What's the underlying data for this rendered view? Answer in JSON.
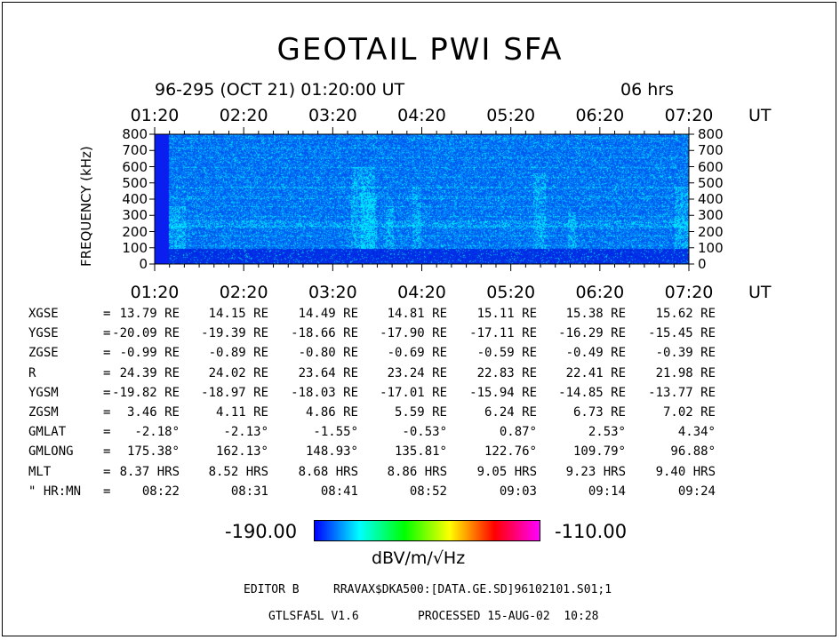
{
  "title": "GEOTAIL PWI SFA",
  "header": {
    "date": "96-295 (OCT 21) 01:20:00 UT",
    "span": "06 hrs"
  },
  "chart_data": {
    "type": "heatmap",
    "title": "GEOTAIL PWI SFA",
    "xlabel": "UT",
    "ylabel": "FREQUENCY (kHz)",
    "x_ticks": [
      "01:20",
      "02:20",
      "03:20",
      "04:20",
      "05:20",
      "06:20",
      "07:20"
    ],
    "x_unit": "UT",
    "y_ticks": [
      0,
      100,
      200,
      300,
      400,
      500,
      600,
      700,
      800
    ],
    "ylim": [
      0,
      800
    ],
    "colorbar": {
      "min": "-190.00",
      "max": "-110.00",
      "units": "dBV/m/√Hz",
      "colors": [
        "#0000ff",
        "#00ffff",
        "#00ff00",
        "#ffff00",
        "#ff0000",
        "#ff00ff"
      ]
    }
  },
  "orbit": {
    "rows": [
      {
        "label": "XGSE",
        "eq": "=",
        "values": [
          "13.79 RE",
          "14.15 RE",
          "14.49 RE",
          "14.81 RE",
          "15.11 RE",
          "15.38 RE",
          "15.62 RE"
        ]
      },
      {
        "label": "YGSE",
        "eq": "=",
        "values": [
          "-20.09 RE",
          "-19.39 RE",
          "-18.66 RE",
          "-17.90 RE",
          "-17.11 RE",
          "-16.29 RE",
          "-15.45 RE"
        ]
      },
      {
        "label": "ZGSE",
        "eq": "=",
        "values": [
          "-0.99 RE",
          "-0.89 RE",
          "-0.80 RE",
          "-0.69 RE",
          "-0.59 RE",
          "-0.49 RE",
          "-0.39 RE"
        ]
      },
      {
        "label": "R",
        "eq": "=",
        "values": [
          "24.39 RE",
          "24.02 RE",
          "23.64 RE",
          "23.24 RE",
          "22.83 RE",
          "22.41 RE",
          "21.98 RE"
        ]
      },
      {
        "label": "YGSM",
        "eq": "=",
        "values": [
          "-19.82 RE",
          "-18.97 RE",
          "-18.03 RE",
          "-17.01 RE",
          "-15.94 RE",
          "-14.85 RE",
          "-13.77 RE"
        ]
      },
      {
        "label": "ZGSM",
        "eq": "=",
        "values": [
          "3.46 RE",
          "4.11 RE",
          "4.86 RE",
          "5.59 RE",
          "6.24 RE",
          "6.73 RE",
          "7.02 RE"
        ]
      },
      {
        "label": "GMLAT",
        "eq": "=",
        "values": [
          "-2.18°",
          "-2.13°",
          "-1.55°",
          "-0.53°",
          "0.87°",
          "2.53°",
          "4.34°"
        ]
      },
      {
        "label": "GMLONG",
        "eq": "=",
        "values": [
          "175.38°",
          "162.13°",
          "148.93°",
          "135.81°",
          "122.76°",
          "109.79°",
          "96.88°"
        ]
      },
      {
        "label": "MLT",
        "eq": "=",
        "values": [
          "8.37 HRS",
          "8.52 HRS",
          "8.68 HRS",
          "8.86 HRS",
          "9.05 HRS",
          "9.23 HRS",
          "9.40 HRS"
        ]
      },
      {
        "label": "\" HR:MN",
        "eq": "=",
        "values": [
          "08:22",
          "08:31",
          "08:41",
          "08:52",
          "09:03",
          "09:14",
          "09:24"
        ]
      }
    ]
  },
  "footer": {
    "editor_label": "EDITOR B",
    "path": "RRAVAX$DKA500:[DATA.GE.SD]96102101.S01;1",
    "program": "GTLSFA5L V1.6",
    "processed": "PROCESSED 15-AUG-02  10:28"
  }
}
